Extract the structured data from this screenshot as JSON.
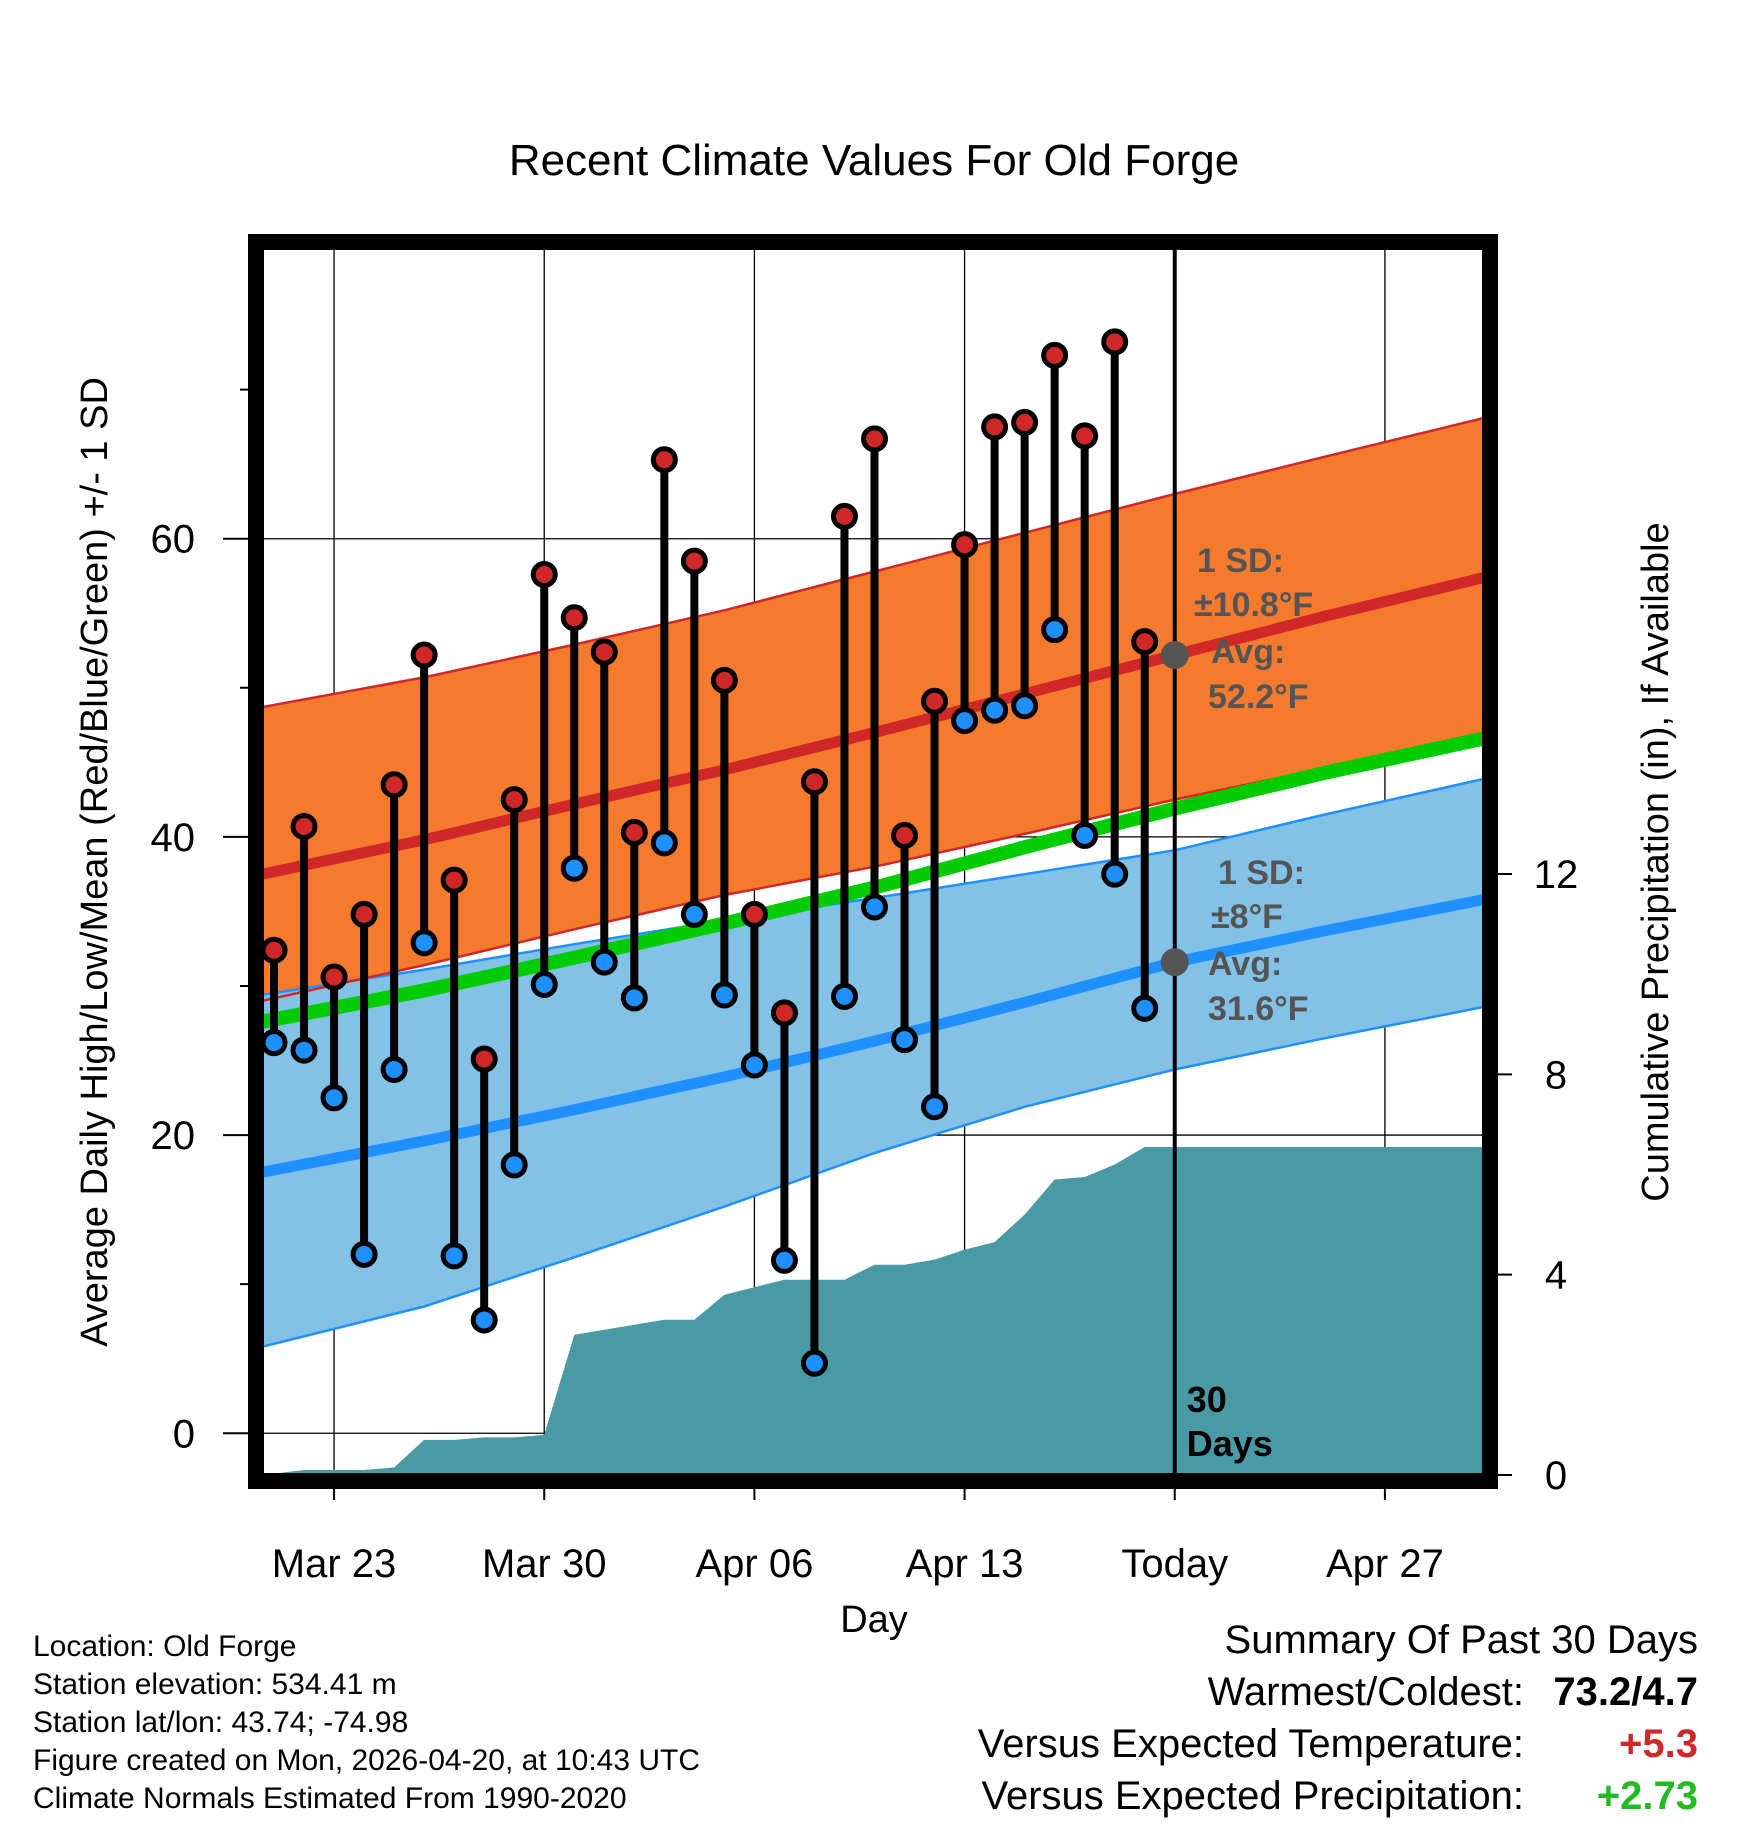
{
  "chart_data": {
    "type": "line",
    "title": "Recent Climate Values For Old Forge",
    "xlabel": "Day",
    "ylabel": "Average Daily High/Low/Mean (Red/Blue/Green) +/- 1 SD",
    "y2label": "Cumulative Precipitation (in), If Available",
    "ylim": [
      -2.8,
      79.5
    ],
    "y2lim": [
      0,
      24.5
    ],
    "yticks": [
      0,
      20,
      40,
      60
    ],
    "y2ticks": [
      0,
      4,
      8,
      12
    ],
    "xlim": [
      -0.4,
      40.3
    ],
    "x_ticks": [
      {
        "day": 2,
        "label": "Mar 23"
      },
      {
        "day": 9,
        "label": "Mar 30"
      },
      {
        "day": 16,
        "label": "Apr 06"
      },
      {
        "day": 23,
        "label": "Apr 13"
      },
      {
        "day": 30,
        "label": "Today"
      },
      {
        "day": 37,
        "label": "Apr 27"
      }
    ],
    "days": [
      0,
      1,
      2,
      3,
      4,
      5,
      6,
      7,
      8,
      9,
      10,
      11,
      12,
      13,
      14,
      15,
      16,
      17,
      18,
      19,
      20,
      21,
      22,
      23,
      24,
      25,
      26,
      27,
      28,
      29
    ],
    "observed_high": [
      32.4,
      40.7,
      30.6,
      34.8,
      43.5,
      52.2,
      37.1,
      25.1,
      42.5,
      57.6,
      54.7,
      52.4,
      40.3,
      65.3,
      58.5,
      50.5,
      34.8,
      28.2,
      43.7,
      61.5,
      66.7,
      40.1,
      49.1,
      59.6,
      67.5,
      67.8,
      72.3,
      66.9,
      73.2,
      53.1
    ],
    "observed_low": [
      26.2,
      25.7,
      22.5,
      12.0,
      24.4,
      32.9,
      11.9,
      7.6,
      18.0,
      30.1,
      37.9,
      31.6,
      29.2,
      39.6,
      34.8,
      29.4,
      24.7,
      11.6,
      4.7,
      29.3,
      35.3,
      26.4,
      21.9,
      47.8,
      48.5,
      48.8,
      53.9,
      40.1,
      37.5,
      28.5
    ],
    "normal_high": {
      "x": [
        -0.4,
        5,
        10,
        15,
        20,
        25,
        30,
        35,
        40.3
      ],
      "mean": [
        37.5,
        39.8,
        42.2,
        44.5,
        47.0,
        49.6,
        52.2,
        54.8,
        57.4
      ],
      "upper": [
        48.7,
        50.7,
        52.9,
        55.2,
        57.8,
        60.4,
        63.0,
        65.5,
        68.1
      ],
      "lower": [
        29.0,
        31.4,
        33.8,
        36.1,
        38.0,
        40.2,
        42.5,
        44.6,
        47.0
      ]
    },
    "normal_low": {
      "x": [
        -0.4,
        5,
        10,
        15,
        20,
        25,
        30,
        35,
        40.3
      ],
      "mean": [
        17.5,
        19.6,
        21.7,
        23.9,
        26.3,
        28.9,
        31.6,
        33.7,
        35.8
      ],
      "upper": [
        29.4,
        31.1,
        32.8,
        34.4,
        35.9,
        37.5,
        39.1,
        41.5,
        43.9
      ],
      "lower": [
        5.8,
        8.5,
        11.8,
        15.2,
        18.8,
        21.9,
        24.4,
        26.5,
        28.6
      ]
    },
    "normal_mean": {
      "x": [
        -0.4,
        5,
        10,
        15,
        20,
        25,
        30,
        35,
        40.3
      ],
      "values": [
        27.6,
        29.7,
        31.9,
        34.2,
        36.6,
        39.3,
        41.9,
        44.3,
        46.6
      ]
    },
    "precip_cumulative": {
      "x": [
        -0.4,
        1,
        2,
        3,
        4,
        5,
        6,
        7,
        8,
        9,
        10,
        11,
        12,
        13,
        14,
        15,
        16,
        17,
        18,
        19,
        20,
        21,
        22,
        23,
        24,
        25,
        26,
        27,
        28,
        29,
        40.3
      ],
      "values": [
        0,
        0.1,
        0.1,
        0.1,
        0.15,
        0.7,
        0.7,
        0.75,
        0.75,
        0.8,
        2.8,
        2.9,
        3.0,
        3.1,
        3.1,
        3.6,
        3.75,
        3.9,
        3.9,
        3.9,
        4.2,
        4.2,
        4.3,
        4.5,
        4.65,
        5.2,
        5.9,
        5.95,
        6.2,
        6.55,
        6.55
      ]
    },
    "today_marker": {
      "day": 30,
      "label_line1": "30",
      "label_line2": "Days"
    },
    "high_annotation": {
      "sd_title": "1 SD:",
      "sd_value": "±10.8°F",
      "avg_title": "Avg:",
      "avg_value": "52.2°F",
      "avg": 52.2
    },
    "low_annotation": {
      "sd_title": "1 SD:",
      "sd_value": "±8°F",
      "avg_title": "Avg:",
      "avg_value": "31.6°F",
      "avg": 31.6
    },
    "colors": {
      "high_band": "#f47b2e",
      "high_line": "#d02828",
      "low_band": "#84c1e6",
      "low_line": "#1e90ff",
      "mean_line": "#00cc00",
      "precip": "#4a9aa5",
      "high_dot": "#d02828",
      "low_dot": "#1e90ff",
      "annotation": "#555555"
    }
  },
  "info": {
    "location": "Location: Old Forge",
    "elevation": "Station elevation: 534.41 m",
    "latlon": "Station lat/lon: 43.74; -74.98",
    "created": "Figure created on Mon, 2026-04-20, at 10:43 UTC",
    "normals": "Climate Normals Estimated From 1990-2020"
  },
  "summary": {
    "title": "Summary Of Past 30 Days",
    "warmest_label": "Warmest/Coldest:",
    "warmest_value": "73.2/4.7",
    "temp_label": "Versus Expected Temperature:",
    "temp_value": "+5.3",
    "precip_label": "Versus Expected Precipitation:",
    "precip_value": "+2.73",
    "temp_color": "#d02828",
    "precip_color": "#22bb22"
  }
}
